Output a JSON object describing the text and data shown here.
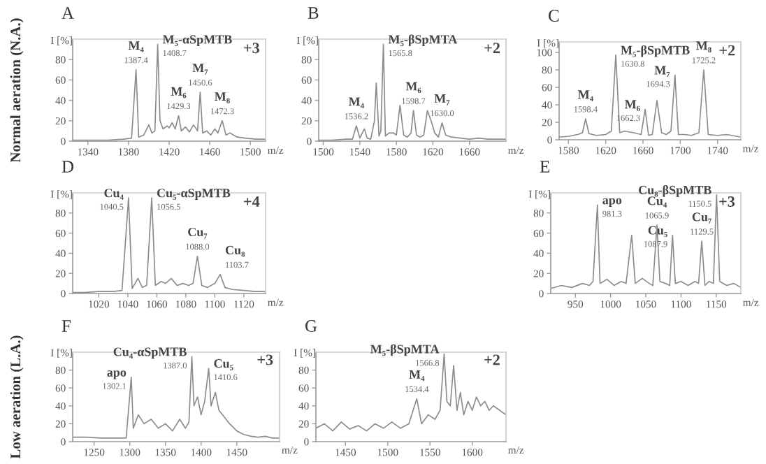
{
  "chart_data": [
    {
      "type": "line",
      "title": "A",
      "xlabel": "m/z",
      "ylabel": "I [%]",
      "xlim": [
        1325,
        1515
      ],
      "xticks": [
        1340,
        1380,
        1420,
        1460,
        1500
      ],
      "ylim": [
        0,
        100
      ],
      "yticks": [
        0,
        20,
        40,
        60,
        80
      ],
      "series": [
        {
          "color": "#8c8c8c",
          "x": [
            1325,
            1340,
            1360,
            1375,
            1383,
            1387.4,
            1390,
            1395,
            1400,
            1403,
            1406,
            1408.7,
            1411,
            1414,
            1418,
            1420,
            1423,
            1426,
            1429.3,
            1432,
            1436,
            1440,
            1444,
            1448,
            1450.6,
            1453,
            1457,
            1461,
            1465,
            1468,
            1472.3,
            1476,
            1480,
            1487,
            1495,
            1505,
            1515
          ],
          "values": [
            1,
            1,
            1,
            2,
            3,
            70,
            4,
            6,
            16,
            8,
            10,
            95,
            20,
            12,
            15,
            13,
            18,
            12,
            25,
            10,
            14,
            9,
            16,
            10,
            48,
            8,
            10,
            6,
            12,
            8,
            20,
            6,
            8,
            4,
            3,
            2,
            2
          ]
        }
      ],
      "annotations": [
        "+3",
        "Normal aeration (N.A.)",
        {
          "text": "M₄",
          "x": 1387.4,
          "y": 70
        },
        {
          "text": "1387.4",
          "x": 1387.4,
          "y": 70
        },
        {
          "text": "M₅-αSpMTB",
          "x": 1408.7,
          "y": 95
        },
        {
          "text": "1408.7",
          "x": 1408.7,
          "y": 95
        },
        {
          "text": "M₆",
          "x": 1429.3,
          "y": 25
        },
        {
          "text": "1429.3",
          "x": 1429.3,
          "y": 25
        },
        {
          "text": "M₇",
          "x": 1450.6,
          "y": 48
        },
        {
          "text": "1450.6",
          "x": 1450.6,
          "y": 48
        },
        {
          "text": "M₈",
          "x": 1472.3,
          "y": 20
        },
        {
          "text": "1472.3",
          "x": 1472.3,
          "y": 20
        }
      ]
    },
    {
      "type": "line",
      "title": "B",
      "xlabel": "m/z",
      "ylabel": "I [%]",
      "xlim": [
        1495,
        1700
      ],
      "xticks": [
        1500,
        1540,
        1580,
        1620,
        1660
      ],
      "ylim": [
        0,
        100
      ],
      "yticks": [
        0,
        20,
        40,
        60,
        80
      ],
      "series": [
        {
          "color": "#8c8c8c",
          "x": [
            1495,
            1510,
            1525,
            1532,
            1536.2,
            1540,
            1545,
            1548,
            1552,
            1556,
            1558,
            1561,
            1563,
            1565.8,
            1568,
            1572,
            1577,
            1580,
            1584,
            1588,
            1592,
            1596,
            1598.7,
            1602,
            1606,
            1610,
            1614,
            1618,
            1622,
            1626,
            1630,
            1634,
            1640,
            1650,
            1660,
            1670,
            1680,
            1690,
            1700
          ],
          "values": [
            1,
            1,
            2,
            2,
            15,
            3,
            12,
            3,
            2,
            20,
            57,
            5,
            10,
            95,
            5,
            8,
            8,
            6,
            35,
            6,
            4,
            8,
            30,
            6,
            4,
            6,
            30,
            20,
            8,
            4,
            18,
            6,
            4,
            3,
            2,
            3,
            2,
            2,
            2
          ]
        }
      ],
      "annotations": [
        "+2",
        {
          "text": "M₄",
          "x": 1536.2,
          "y": 15
        },
        {
          "text": "1536.2",
          "x": 1536.2,
          "y": 15
        },
        {
          "text": "M₅-βSpMTA",
          "x": 1565.8,
          "y": 95
        },
        {
          "text": "1565.8",
          "x": 1565.8,
          "y": 95
        },
        {
          "text": "M₆",
          "x": 1598.7,
          "y": 30
        },
        {
          "text": "1598.7",
          "x": 1598.7,
          "y": 30
        },
        {
          "text": "M₇",
          "x": 1630,
          "y": 18
        },
        {
          "text": "1630.0",
          "x": 1630,
          "y": 18
        }
      ]
    },
    {
      "type": "line",
      "title": "C",
      "xlabel": "m/z",
      "ylabel": "I [%]",
      "xlim": [
        1570,
        1765
      ],
      "xticks": [
        1580,
        1620,
        1660,
        1700,
        1740
      ],
      "ylim": [
        0,
        112
      ],
      "yticks": [
        0,
        20,
        40,
        60,
        80,
        100
      ],
      "series": [
        {
          "color": "#8c8c8c",
          "x": [
            1570,
            1580,
            1590,
            1595,
            1598.4,
            1602,
            1610,
            1620,
            1626,
            1630.8,
            1635,
            1640,
            1650,
            1658,
            1662.3,
            1666,
            1670,
            1675,
            1680,
            1685,
            1690,
            1694.3,
            1698,
            1705,
            1712,
            1720,
            1725.2,
            1730,
            1740,
            1750,
            1765
          ],
          "values": [
            3,
            4,
            6,
            8,
            24,
            7,
            5,
            6,
            10,
            97,
            8,
            10,
            8,
            6,
            35,
            5,
            6,
            45,
            8,
            6,
            10,
            74,
            6,
            6,
            5,
            8,
            80,
            6,
            5,
            6,
            3
          ]
        }
      ],
      "annotations": [
        "+2",
        {
          "text": "M₄",
          "x": 1598.4,
          "y": 24
        },
        {
          "text": "1598.4",
          "x": 1598.4,
          "y": 24
        },
        {
          "text": "M₅-βSpMTB",
          "x": 1630.8,
          "y": 97
        },
        {
          "text": "1630.8",
          "x": 1630.8,
          "y": 97
        },
        {
          "text": "M₆",
          "x": 1662.3,
          "y": 35
        },
        {
          "text": "1662.3",
          "x": 1662.3,
          "y": 35
        },
        {
          "text": "M₇",
          "x": 1694.3,
          "y": 74
        },
        {
          "text": "1694.3",
          "x": 1694.3,
          "y": 74
        },
        {
          "text": "M₈",
          "x": 1725.2,
          "y": 80
        },
        {
          "text": "1725.2",
          "x": 1725.2,
          "y": 80
        }
      ]
    },
    {
      "type": "line",
      "title": "D",
      "xlabel": "m/z",
      "ylabel": "I [%]",
      "xlim": [
        1002,
        1135
      ],
      "xticks": [
        1020,
        1040,
        1060,
        1080,
        1100,
        1120
      ],
      "ylim": [
        0,
        100
      ],
      "yticks": [
        0,
        20,
        40,
        60,
        80
      ],
      "series": [
        {
          "color": "#8c8c8c",
          "x": [
            1002,
            1010,
            1020,
            1030,
            1036,
            1040.5,
            1043,
            1047,
            1050,
            1053,
            1056.5,
            1059,
            1063,
            1066,
            1070,
            1074,
            1078,
            1082,
            1085,
            1088,
            1091,
            1095,
            1100,
            1103.7,
            1107,
            1112,
            1120,
            1128,
            1135
          ],
          "values": [
            1,
            1,
            2,
            2,
            3,
            95,
            5,
            15,
            6,
            8,
            95,
            8,
            12,
            10,
            15,
            8,
            10,
            8,
            10,
            37,
            8,
            6,
            10,
            19,
            6,
            4,
            3,
            2,
            2
          ]
        }
      ],
      "annotations": [
        "+4",
        {
          "text": "Cu₄",
          "x": 1040.5,
          "y": 95
        },
        {
          "text": "1040.5",
          "x": 1040.5,
          "y": 95
        },
        {
          "text": "Cu₅-αSpMTB",
          "x": 1056.5,
          "y": 95
        },
        {
          "text": "1056.5",
          "x": 1056.5,
          "y": 95
        },
        {
          "text": "Cu₇",
          "x": 1088,
          "y": 37
        },
        {
          "text": "1088.0",
          "x": 1088,
          "y": 37
        },
        {
          "text": "Cu₈",
          "x": 1103.7,
          "y": 19
        },
        {
          "text": "1103.7",
          "x": 1103.7,
          "y": 19
        }
      ]
    },
    {
      "type": "line",
      "title": "E",
      "xlabel": "m/z",
      "ylabel": "I [%]",
      "xlim": [
        915,
        1185
      ],
      "xticks": [
        950,
        1000,
        1050,
        1100,
        1150
      ],
      "ylim": [
        0,
        100
      ],
      "yticks": [
        0,
        20,
        40,
        60,
        80
      ],
      "series": [
        {
          "color": "#8c8c8c",
          "x": [
            915,
            930,
            945,
            960,
            970,
            975,
            981.3,
            985,
            995,
            1005,
            1015,
            1022,
            1030,
            1035,
            1045,
            1055,
            1060,
            1065.9,
            1070,
            1078,
            1084,
            1087.9,
            1092,
            1100,
            1110,
            1120,
            1125,
            1129.5,
            1134,
            1140,
            1146,
            1150.5,
            1155,
            1165,
            1175,
            1185
          ],
          "values": [
            5,
            8,
            6,
            10,
            8,
            12,
            88,
            10,
            14,
            8,
            12,
            10,
            58,
            10,
            15,
            10,
            8,
            68,
            12,
            10,
            8,
            58,
            10,
            12,
            8,
            12,
            10,
            52,
            8,
            12,
            10,
            98,
            12,
            8,
            10,
            6
          ]
        }
      ],
      "annotations": [
        "+3",
        {
          "text": "apo",
          "x": 981.3,
          "y": 88
        },
        {
          "text": "981.3",
          "x": 981.3,
          "y": 88
        },
        {
          "text": "Cu₄",
          "x": 1065.9,
          "y": 68
        },
        {
          "text": "1065.9",
          "x": 1065.9,
          "y": 68
        },
        {
          "text": "Cu₅",
          "x": 1087.9,
          "y": 58
        },
        {
          "text": "1087.9",
          "x": 1087.9,
          "y": 58
        },
        {
          "text": "Cu₇",
          "x": 1129.5,
          "y": 52
        },
        {
          "text": "1129.5",
          "x": 1129.5,
          "y": 52
        },
        {
          "text": "Cu₈-βSpMTB",
          "x": 1150.5,
          "y": 98
        },
        {
          "text": "1150.5",
          "x": 1150.5,
          "y": 98
        }
      ]
    },
    {
      "type": "line",
      "title": "F",
      "xlabel": "m/z",
      "ylabel": "I [%]",
      "xlim": [
        1220,
        1510
      ],
      "xticks": [
        1250,
        1300,
        1350,
        1400,
        1450
      ],
      "ylim": [
        0,
        100
      ],
      "yticks": [
        0,
        20,
        40,
        60,
        80
      ],
      "series": [
        {
          "color": "#8c8c8c",
          "x": [
            1220,
            1240,
            1260,
            1280,
            1295,
            1302.1,
            1305,
            1312,
            1320,
            1330,
            1340,
            1350,
            1360,
            1370,
            1378,
            1383,
            1387,
            1390,
            1395,
            1400,
            1405,
            1410.6,
            1414,
            1420,
            1425,
            1430,
            1440,
            1450,
            1460,
            1470,
            1480,
            1490,
            1500,
            1510
          ],
          "values": [
            5,
            5,
            4,
            4,
            4,
            72,
            15,
            30,
            20,
            25,
            15,
            20,
            12,
            25,
            15,
            22,
            95,
            40,
            50,
            30,
            45,
            82,
            40,
            55,
            35,
            30,
            20,
            12,
            8,
            6,
            5,
            6,
            4,
            4
          ]
        }
      ],
      "annotations": [
        "+3",
        "Low aeration (L.A.)",
        {
          "text": "apo",
          "x": 1302.1,
          "y": 72
        },
        {
          "text": "1302.1",
          "x": 1302.1,
          "y": 72
        },
        {
          "text": "Cu₄-αSpMTB",
          "x": 1387,
          "y": 95
        },
        {
          "text": "1387.0",
          "x": 1387,
          "y": 95
        },
        {
          "text": "Cu₅",
          "x": 1410.6,
          "y": 82
        },
        {
          "text": "1410.6",
          "x": 1410.6,
          "y": 82
        }
      ]
    },
    {
      "type": "line",
      "title": "G",
      "xlabel": "m/z",
      "ylabel": "I [%]",
      "xlim": [
        1415,
        1640
      ],
      "xticks": [
        1450,
        1500,
        1550,
        1600
      ],
      "ylim": [
        0,
        100
      ],
      "yticks": [
        0,
        20,
        40,
        60,
        80
      ],
      "series": [
        {
          "color": "#8c8c8c",
          "x": [
            1415,
            1425,
            1435,
            1445,
            1455,
            1465,
            1475,
            1485,
            1495,
            1505,
            1515,
            1525,
            1534.4,
            1540,
            1548,
            1556,
            1562,
            1566.8,
            1570,
            1574,
            1578,
            1582,
            1586,
            1590,
            1595,
            1600,
            1605,
            1610,
            1615,
            1620,
            1625,
            1640
          ],
          "values": [
            15,
            20,
            12,
            22,
            14,
            18,
            12,
            20,
            15,
            22,
            15,
            20,
            48,
            20,
            30,
            25,
            35,
            98,
            45,
            40,
            85,
            35,
            55,
            30,
            45,
            35,
            50,
            40,
            45,
            35,
            40,
            30
          ]
        }
      ],
      "annotations": [
        "+2",
        {
          "text": "M₅-βSpMTA",
          "x": 1566.8,
          "y": 98
        },
        {
          "text": "1566.8",
          "x": 1566.8,
          "y": 98
        },
        {
          "text": "M₄",
          "x": 1534.4,
          "y": 48
        },
        {
          "text": "1534.4",
          "x": 1534.4,
          "y": 48
        }
      ]
    }
  ]
}
